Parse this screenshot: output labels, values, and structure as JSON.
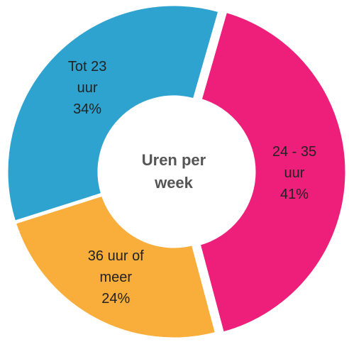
{
  "chart_data": {
    "type": "donut",
    "title": "Uren per week",
    "categories": [
      "24 - 35 uur",
      "36 uur of meer",
      "Tot 23 uur"
    ],
    "values": [
      41,
      24,
      34
    ],
    "value_labels": [
      "41%",
      "24%",
      "34%"
    ],
    "colors": [
      "#ee1f7a",
      "#f9ae3b",
      "#2ea3d0"
    ]
  }
}
